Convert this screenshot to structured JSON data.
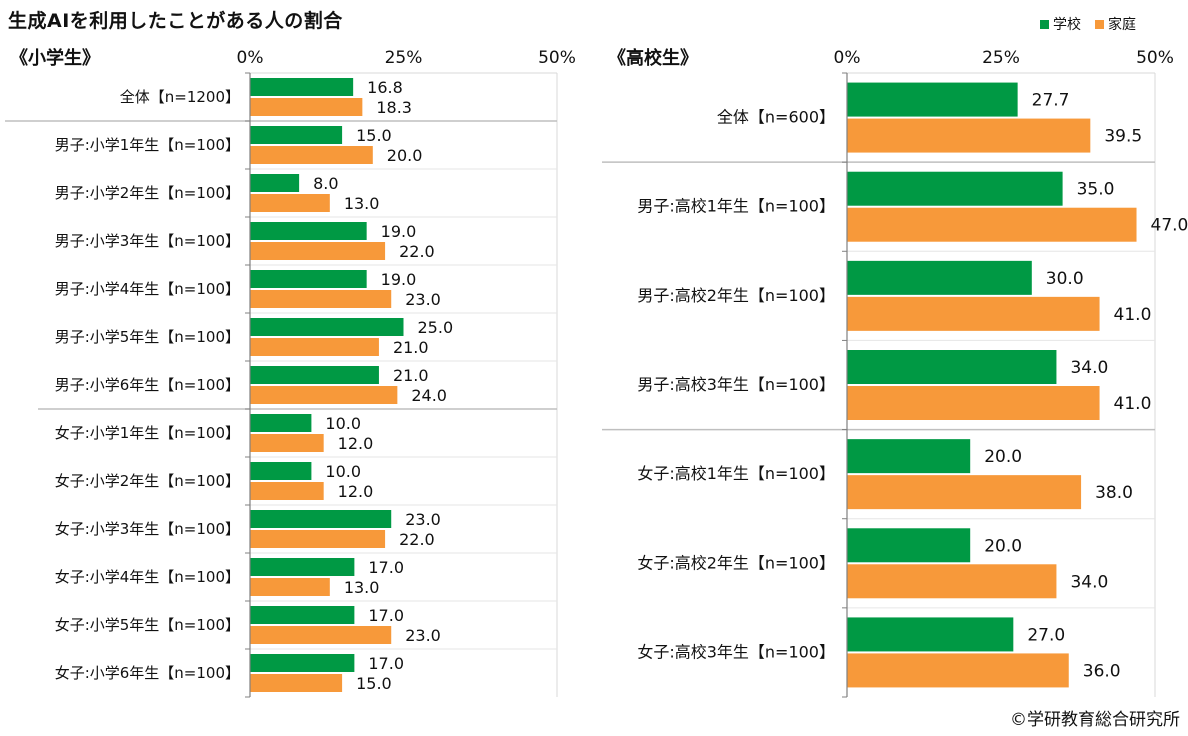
{
  "title": "生成AIを利用したことがある人の割合",
  "legend": [
    {
      "label": "学校",
      "color": "#009944"
    },
    {
      "label": "家庭",
      "color": "#F7993A"
    }
  ],
  "credit": "©学研教育総合研究所",
  "chart_data": [
    {
      "type": "bar",
      "orientation": "horizontal",
      "panel_title": "《小学生》",
      "xlim": [
        0,
        50
      ],
      "ticks": [
        "0%",
        "25%",
        "50%"
      ],
      "categories": [
        "全体【n=1200】",
        "男子:小学1年生【n=100】",
        "男子:小学2年生【n=100】",
        "男子:小学3年生【n=100】",
        "男子:小学4年生【n=100】",
        "男子:小学5年生【n=100】",
        "男子:小学6年生【n=100】",
        "女子:小学1年生【n=100】",
        "女子:小学2年生【n=100】",
        "女子:小学3年生【n=100】",
        "女子:小学4年生【n=100】",
        "女子:小学5年生【n=100】",
        "女子:小学6年生【n=100】"
      ],
      "series": [
        {
          "name": "学校",
          "values": [
            16.8,
            15.0,
            8.0,
            19.0,
            19.0,
            25.0,
            21.0,
            10.0,
            10.0,
            23.0,
            17.0,
            17.0,
            17.0
          ]
        },
        {
          "name": "家庭",
          "values": [
            18.3,
            20.0,
            13.0,
            22.0,
            23.0,
            21.0,
            24.0,
            12.0,
            12.0,
            22.0,
            13.0,
            23.0,
            15.0
          ]
        }
      ],
      "data_labels": {
        "学校": [
          "16.8",
          "15.0",
          "8.0",
          "19.0",
          "19.0",
          "25.0",
          "21.0",
          "10.0",
          "10.0",
          "23.0",
          "17.0",
          "17.0",
          "17.0"
        ],
        "家庭": [
          "18.3",
          "20.0",
          "13.0",
          "22.0",
          "23.0",
          "21.0",
          "24.0",
          "12.0",
          "12.0",
          "22.0",
          "13.0",
          "23.0",
          "15.0"
        ]
      },
      "group_separators_after": [
        0,
        6
      ]
    },
    {
      "type": "bar",
      "orientation": "horizontal",
      "panel_title": "《高校生》",
      "xlim": [
        0,
        50
      ],
      "ticks": [
        "0%",
        "25%",
        "50%"
      ],
      "categories": [
        "全体【n=600】",
        "男子:高校1年生【n=100】",
        "男子:高校2年生【n=100】",
        "男子:高校3年生【n=100】",
        "女子:高校1年生【n=100】",
        "女子:高校2年生【n=100】",
        "女子:高校3年生【n=100】"
      ],
      "series": [
        {
          "name": "学校",
          "values": [
            27.7,
            35.0,
            30.0,
            34.0,
            20.0,
            20.0,
            27.0
          ]
        },
        {
          "name": "家庭",
          "values": [
            39.5,
            47.0,
            41.0,
            41.0,
            38.0,
            34.0,
            36.0
          ]
        }
      ],
      "data_labels": {
        "学校": [
          "27.7",
          "35.0",
          "30.0",
          "34.0",
          "20.0",
          "20.0",
          "27.0"
        ],
        "家庭": [
          "39.5",
          "47.0",
          "41.0",
          "41.0",
          "38.0",
          "34.0",
          "36.0"
        ]
      },
      "group_separators_after": [
        0,
        3
      ]
    }
  ]
}
